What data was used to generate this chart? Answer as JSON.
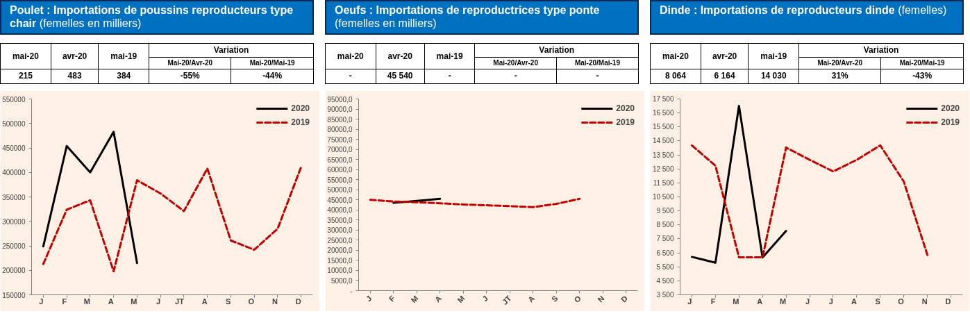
{
  "chart_data": [
    {
      "type": "line",
      "title": "Poulet : Importations de poussins reproducteurs type chair",
      "subtitle": "(femelles en milliers)",
      "annotations": [
        "mai-20",
        "avr-20",
        "mai-19",
        "Variation",
        "Mai-20/Avr-20",
        "Mai-20/Mai-19",
        "215",
        "483",
        "384",
        "-55%",
        "-44%"
      ],
      "categories": [
        "J",
        "F",
        "M",
        "A",
        "M",
        "J",
        "JT",
        "A",
        "S",
        "O",
        "N",
        "D"
      ],
      "ylim": [
        150000,
        550000
      ],
      "yticks": [
        150000,
        200000,
        250000,
        300000,
        350000,
        400000,
        450000,
        500000,
        550000
      ],
      "grid": false,
      "legend": "top right",
      "series": [
        {
          "name": "2020",
          "color": "#000000",
          "line_style": "solid",
          "values": [
            249000,
            454000,
            400000,
            483000,
            215000,
            null,
            null,
            null,
            null,
            null,
            null,
            null
          ]
        },
        {
          "name": "2019",
          "color": "#c00000",
          "line_style": "dashed",
          "values": [
            213000,
            324000,
            343000,
            198000,
            384000,
            357000,
            321000,
            408000,
            261000,
            242000,
            285000,
            411000
          ]
        }
      ]
    },
    {
      "type": "line",
      "title": "Oeufs : Importations de reproductrices type ponte",
      "subtitle": "(femelles en milliers)",
      "annotations": [
        "mai-20",
        "avr-20",
        "mai-19",
        "Variation",
        "Mai-20/Avr-20",
        "Mai-20/Mai-19",
        "-",
        "45 540",
        "-",
        "-",
        "-"
      ],
      "categories": [
        "J",
        "F",
        "M",
        "A",
        "M",
        "J",
        "JT",
        "A",
        "S",
        "O",
        "N",
        "D"
      ],
      "ylim": [
        0,
        95000
      ],
      "yticks": [
        {
          "value": 0,
          "label": "-"
        },
        {
          "value": 5000,
          "label": "5000,0"
        },
        {
          "value": 10000,
          "label": "10000,0"
        },
        {
          "value": 15000,
          "label": "15000,0"
        },
        {
          "value": 20000,
          "label": "20000,0"
        },
        {
          "value": 25000,
          "label": "25000,0"
        },
        {
          "value": 30000,
          "label": "30000,0"
        },
        {
          "value": 35000,
          "label": "35000,0"
        },
        {
          "value": 40000,
          "label": "40000,0"
        },
        {
          "value": 45000,
          "label": "45000,0"
        },
        {
          "value": 50000,
          "label": "50000,0"
        },
        {
          "value": 55000,
          "label": "55000,0"
        },
        {
          "value": 60000,
          "label": "60000,0"
        },
        {
          "value": 65000,
          "label": "65000,0"
        },
        {
          "value": 70000,
          "label": "70000,0"
        },
        {
          "value": 75000,
          "label": "75000,0"
        },
        {
          "value": 80000,
          "label": "80000,0"
        },
        {
          "value": 85000,
          "label": "85000,0"
        },
        {
          "value": 90000,
          "label": "90000,0"
        },
        {
          "value": 95000,
          "label": "95000,0"
        }
      ],
      "grid": false,
      "legend": "top right",
      "series": [
        {
          "name": "2020",
          "color": "#000000",
          "line_style": "solid",
          "values": [
            null,
            43500,
            44500,
            45540,
            null,
            null,
            null,
            null,
            null,
            null,
            null,
            null
          ]
        },
        {
          "name": "2019",
          "color": "#c00000",
          "line_style": "dashed",
          "values": [
            45000,
            44200,
            43800,
            43300,
            42700,
            42300,
            41900,
            41400,
            43000,
            45500,
            null,
            null
          ]
        }
      ]
    },
    {
      "type": "line",
      "title": "Dinde : Importations de reproducteurs dinde",
      "subtitle": "(femelles)",
      "annotations": [
        "mai-20",
        "avr-20",
        "mai-19",
        "Variation",
        "Mai-20/Avr-20",
        "Mai-20/Mai-19",
        "8 064",
        "6 164",
        "14 030",
        "31%",
        "-43%"
      ],
      "categories": [
        "J",
        "F",
        "M",
        "A",
        "M",
        "J",
        "J",
        "A",
        "S",
        "O",
        "N",
        "D"
      ],
      "ylim": [
        3500,
        17500
      ],
      "yticks": [
        {
          "value": 3500,
          "label": "3 500"
        },
        {
          "value": 4500,
          "label": "4 500"
        },
        {
          "value": 5500,
          "label": "5 500"
        },
        {
          "value": 6500,
          "label": "6 500"
        },
        {
          "value": 7500,
          "label": "7 500"
        },
        {
          "value": 8500,
          "label": "8 500"
        },
        {
          "value": 9500,
          "label": "9 500"
        },
        {
          "value": 10500,
          "label": "10 500"
        },
        {
          "value": 11500,
          "label": "11 500"
        },
        {
          "value": 12500,
          "label": "12 500"
        },
        {
          "value": 13500,
          "label": "13 500"
        },
        {
          "value": 14500,
          "label": "14 500"
        },
        {
          "value": 15500,
          "label": "15 500"
        },
        {
          "value": 16500,
          "label": "16 500"
        },
        {
          "value": 17500,
          "label": "17 500"
        }
      ],
      "grid": false,
      "legend": "top right",
      "series": [
        {
          "name": "2020",
          "color": "#000000",
          "line_style": "solid",
          "values": [
            6210,
            5800,
            17000,
            6164,
            8064,
            null,
            null,
            null,
            null,
            null,
            null,
            null
          ]
        },
        {
          "name": "2019",
          "color": "#c00000",
          "line_style": "dashed",
          "values": [
            14180,
            12730,
            6180,
            6180,
            14030,
            13150,
            12320,
            13150,
            14180,
            11590,
            6350,
            null
          ]
        }
      ]
    }
  ]
}
